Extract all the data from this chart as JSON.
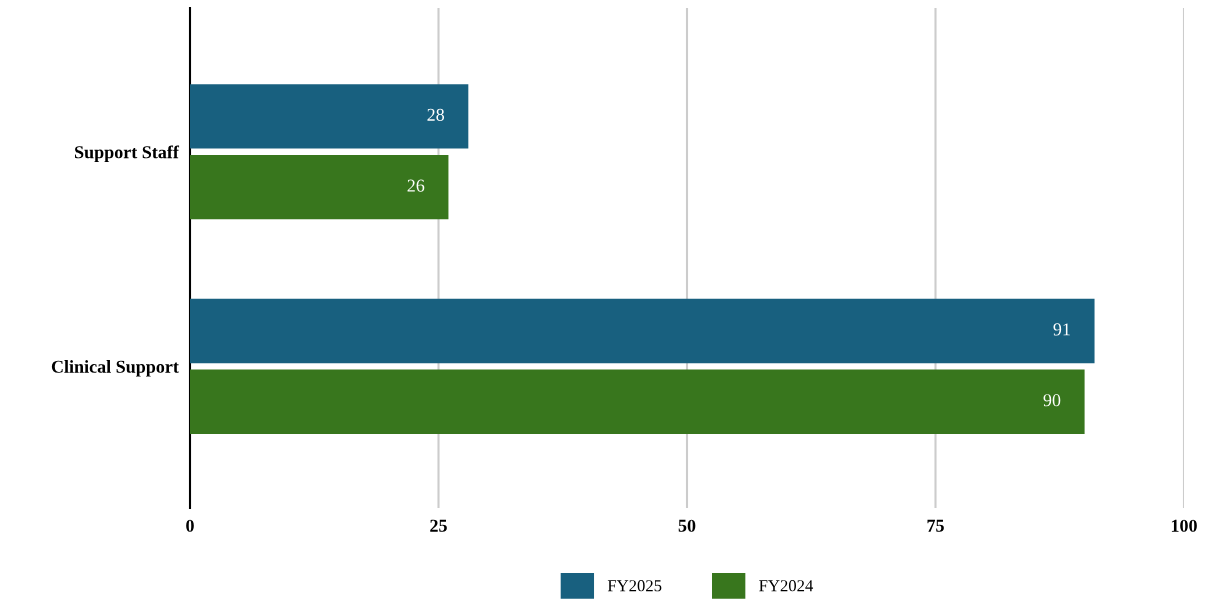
{
  "chart_data": {
    "type": "bar",
    "orientation": "horizontal",
    "categories": [
      "Support Staff",
      "Clinical Support"
    ],
    "series": [
      {
        "name": "FY2025",
        "color": "#18607f",
        "values": [
          28,
          91
        ]
      },
      {
        "name": "FY2024",
        "color": "#38761d",
        "values": [
          26,
          90
        ]
      }
    ],
    "xlim": [
      0,
      100
    ],
    "xticks": [
      0,
      25,
      50,
      75,
      100
    ],
    "grid": "x",
    "legend": "bottom",
    "data_labels": true
  }
}
